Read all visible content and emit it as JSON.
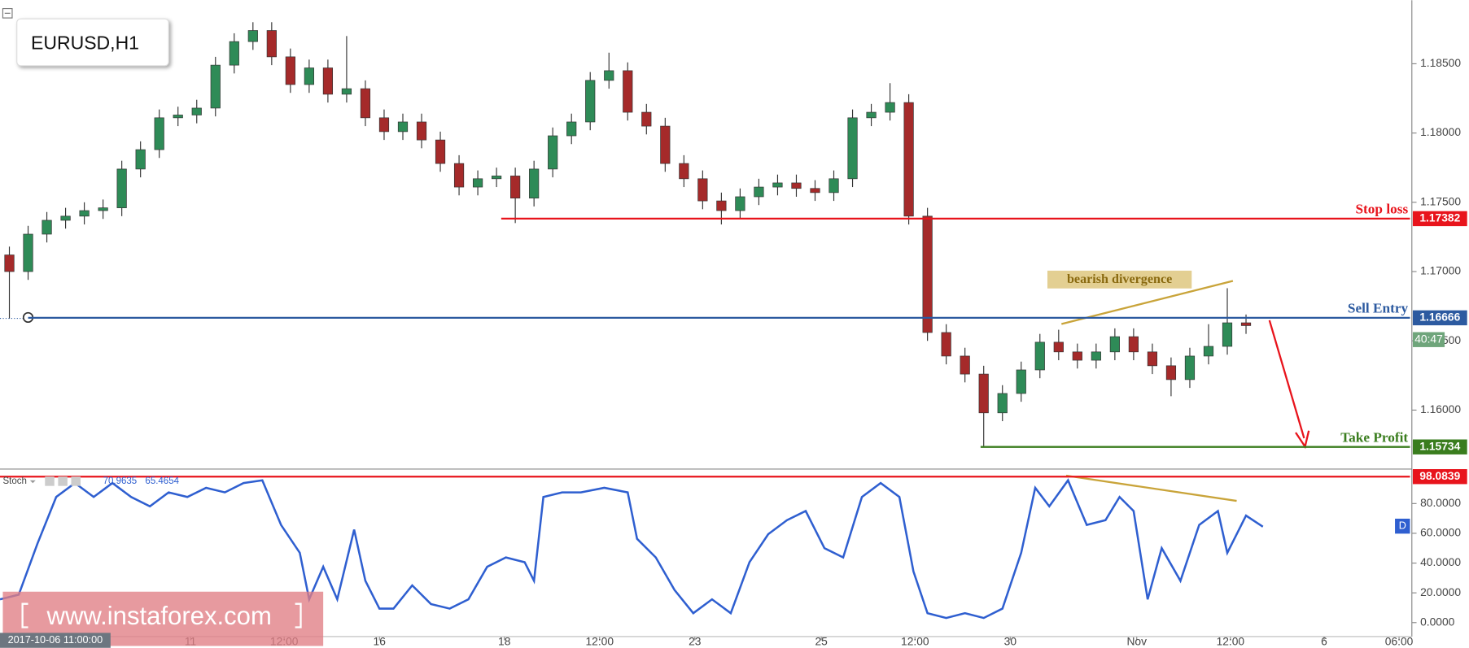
{
  "chart_data": [
    {
      "type": "candlestick",
      "title": "EURUSD,H1",
      "x": [
        6,
        18,
        30,
        42,
        54,
        66,
        78,
        90,
        102,
        114,
        126,
        138,
        150,
        162,
        174,
        186,
        198,
        210,
        222,
        234,
        246,
        258,
        270,
        282,
        294,
        306,
        318,
        330,
        342,
        354,
        366,
        378,
        390,
        402,
        414,
        426,
        438,
        450,
        462,
        474,
        486,
        498,
        510,
        522,
        534,
        546,
        558,
        570,
        582,
        594,
        606,
        618,
        630,
        642,
        654,
        666,
        678,
        690,
        702,
        714,
        726,
        738,
        750,
        762,
        774,
        786,
        798
      ],
      "open": [
        1.1712,
        1.17,
        1.1727,
        1.1737,
        1.174,
        1.1744,
        1.1746,
        1.1774,
        1.1788,
        1.1811,
        1.1813,
        1.1818,
        1.1849,
        1.1866,
        1.1874,
        1.1855,
        1.1835,
        1.1847,
        1.1828,
        1.1832,
        1.1811,
        1.1801,
        1.1808,
        1.1795,
        1.1778,
        1.1761,
        1.1767,
        1.1769,
        1.1753,
        1.1774,
        1.1798,
        1.1808,
        1.1838,
        1.1845,
        1.1815,
        1.1805,
        1.1778,
        1.1767,
        1.1751,
        1.1744,
        1.1754,
        1.1761,
        1.1764,
        1.176,
        1.1757,
        1.1767,
        1.1811,
        1.1815,
        1.1822,
        1.174,
        1.1656,
        1.1639,
        1.1626,
        1.1598,
        1.1612,
        1.1629,
        1.1649,
        1.1642,
        1.1636,
        1.1642,
        1.1653,
        1.1642,
        1.1632,
        1.1622,
        1.1639,
        1.1646,
        1.1663
      ],
      "high": [
        1.1718,
        1.1733,
        1.1743,
        1.1746,
        1.175,
        1.1752,
        1.178,
        1.1794,
        1.1817,
        1.1819,
        1.1824,
        1.1855,
        1.1872,
        1.188,
        1.188,
        1.1861,
        1.1853,
        1.1853,
        1.187,
        1.1838,
        1.1817,
        1.1814,
        1.1814,
        1.1801,
        1.1784,
        1.1773,
        1.1775,
        1.1775,
        1.178,
        1.1804,
        1.1814,
        1.1844,
        1.1858,
        1.1851,
        1.1821,
        1.1811,
        1.1784,
        1.1773,
        1.1757,
        1.176,
        1.1767,
        1.177,
        1.177,
        1.1766,
        1.1773,
        1.1817,
        1.1821,
        1.1836,
        1.1828,
        1.1746,
        1.1662,
        1.1645,
        1.1632,
        1.1618,
        1.1635,
        1.1655,
        1.1658,
        1.1648,
        1.1648,
        1.1659,
        1.1659,
        1.1648,
        1.1638,
        1.1645,
        1.1662,
        1.1688,
        1.1669
      ],
      "low": [
        1.1666,
        1.1694,
        1.1721,
        1.1731,
        1.1734,
        1.1738,
        1.174,
        1.1768,
        1.1782,
        1.1805,
        1.1807,
        1.1812,
        1.1843,
        1.186,
        1.1849,
        1.1829,
        1.1829,
        1.1822,
        1.1822,
        1.1805,
        1.1795,
        1.1795,
        1.1789,
        1.1772,
        1.1755,
        1.1755,
        1.1761,
        1.1735,
        1.1747,
        1.1768,
        1.1792,
        1.1802,
        1.1832,
        1.1809,
        1.1799,
        1.1772,
        1.1761,
        1.1745,
        1.1734,
        1.1738,
        1.1748,
        1.1755,
        1.1754,
        1.1751,
        1.1751,
        1.1761,
        1.1805,
        1.1809,
        1.1734,
        1.165,
        1.1633,
        1.162,
        1.1573,
        1.1592,
        1.1606,
        1.1623,
        1.1636,
        1.163,
        1.163,
        1.1636,
        1.1636,
        1.1626,
        1.161,
        1.1616,
        1.1633,
        1.164,
        1.1655
      ],
      "close": [
        1.17,
        1.1727,
        1.1737,
        1.174,
        1.1744,
        1.1746,
        1.1774,
        1.1788,
        1.1811,
        1.1813,
        1.1818,
        1.1849,
        1.1866,
        1.1874,
        1.1855,
        1.1835,
        1.1847,
        1.1828,
        1.1832,
        1.1811,
        1.1801,
        1.1808,
        1.1795,
        1.1778,
        1.1761,
        1.1767,
        1.1769,
        1.1753,
        1.1774,
        1.1798,
        1.1808,
        1.1838,
        1.1845,
        1.1815,
        1.1805,
        1.1778,
        1.1767,
        1.1751,
        1.1744,
        1.1754,
        1.1761,
        1.1764,
        1.176,
        1.1757,
        1.1767,
        1.1811,
        1.1815,
        1.1822,
        1.174,
        1.1656,
        1.1639,
        1.1626,
        1.1598,
        1.1612,
        1.1629,
        1.1649,
        1.1642,
        1.1636,
        1.1642,
        1.1653,
        1.1642,
        1.1632,
        1.1622,
        1.1639,
        1.1646,
        1.1663,
        1.1661
      ],
      "up_color": "#2e8b57",
      "down_color": "#a52a2a",
      "xlim": [
        0,
        903
      ],
      "ylim": [
        1.15581,
        1.18959
      ],
      "yticks": [
        {
          "value": 1.16,
          "label": "1.16000"
        },
        {
          "value": 1.165,
          "label": "1.16500"
        },
        {
          "value": 1.17,
          "label": "1.17000"
        },
        {
          "value": 1.175,
          "label": "1.17500"
        },
        {
          "value": 1.18,
          "label": "1.18000"
        },
        {
          "value": 1.185,
          "label": "1.18500"
        }
      ],
      "levels": [
        {
          "name": "Stop loss",
          "value": 1.17382,
          "x0": 321,
          "color": "#e8141c"
        },
        {
          "name": "Sell Entry",
          "value": 1.16666,
          "x0": 18,
          "color": "#2c5aa0"
        },
        {
          "name": "Take Profit",
          "value": 1.15734,
          "x0": 628,
          "color": "#3a7d1e"
        }
      ],
      "annotation": "bearish divergence",
      "countdown": "40:47",
      "cursor_date": "2017-10-06 11:00:00"
    },
    {
      "type": "line",
      "title": "Stoch",
      "x": [
        0,
        12,
        24,
        36,
        48,
        60,
        72,
        84,
        96,
        108,
        120,
        132,
        144,
        156,
        168,
        180,
        192,
        198,
        207,
        216,
        226.8,
        234,
        243,
        252,
        264,
        276,
        288,
        300,
        312,
        324,
        336,
        342,
        348,
        360,
        372,
        387,
        402,
        408,
        420,
        432,
        444,
        456,
        468,
        480,
        492,
        504,
        516,
        528,
        540,
        552,
        564,
        576,
        585,
        594,
        606,
        618,
        630,
        642,
        654,
        663,
        672,
        684,
        696,
        708,
        717,
        726,
        735,
        744,
        756,
        768,
        780,
        786,
        798,
        808.8
      ],
      "series": [
        {
          "name": "Stoch",
          "color": "#2f5fd0",
          "values": [
            15.6,
            18.8,
            53.1,
            84.4,
            93.8,
            84.4,
            93.8,
            84.4,
            78.1,
            87.5,
            84.4,
            90.6,
            87.5,
            93.8,
            95.6,
            65.6,
            46.9,
            15.6,
            37.5,
            15.6,
            62.5,
            28.1,
            9.4,
            9.4,
            25.0,
            12.5,
            9.4,
            15.6,
            37.5,
            43.8,
            40.6,
            28.1,
            84.4,
            87.5,
            87.5,
            90.6,
            87.5,
            56.3,
            43.8,
            21.9,
            6.3,
            15.6,
            6.3,
            40.6,
            59.4,
            68.8,
            75.0,
            50.0,
            43.8,
            84.4,
            93.8,
            84.4,
            34.4,
            6.3,
            3.1,
            6.3,
            3.1,
            9.4,
            46.9,
            90.6,
            78.1,
            95.6,
            65.6,
            68.8,
            84.4,
            75.0,
            15.6,
            50.0,
            28.1,
            65.6,
            75.0,
            46.9,
            71.9,
            64.4
          ]
        }
      ],
      "readouts": [
        70.9635,
        65.4654
      ],
      "signal_label": "D",
      "levels": [
        {
          "value": 98.0839,
          "color": "#e8141c"
        }
      ],
      "xlim": [
        0,
        903
      ],
      "ylim": [
        -9.4,
        101.9
      ],
      "yticks": [
        {
          "value": 0,
          "label": "0.0000"
        },
        {
          "value": 20,
          "label": "20.0000"
        },
        {
          "value": 40,
          "label": "40.0000"
        },
        {
          "value": 60,
          "label": "60.0000"
        },
        {
          "value": 80,
          "label": "80.0000"
        }
      ],
      "xticks": [
        {
          "value": 122,
          "label": "11"
        },
        {
          "value": 182,
          "label": "12:00"
        },
        {
          "value": 243,
          "label": "16"
        },
        {
          "value": 323,
          "label": "18"
        },
        {
          "value": 384,
          "label": "12:00"
        },
        {
          "value": 445,
          "label": "23"
        },
        {
          "value": 526,
          "label": "25"
        },
        {
          "value": 586,
          "label": "12:00"
        },
        {
          "value": 647,
          "label": "30"
        },
        {
          "value": 728,
          "label": "Nov"
        },
        {
          "value": 788,
          "label": "12:00"
        },
        {
          "value": 848,
          "label": "6"
        },
        {
          "value": 896,
          "label": "06:00"
        }
      ],
      "watermark": "www.instaforex.com"
    }
  ]
}
